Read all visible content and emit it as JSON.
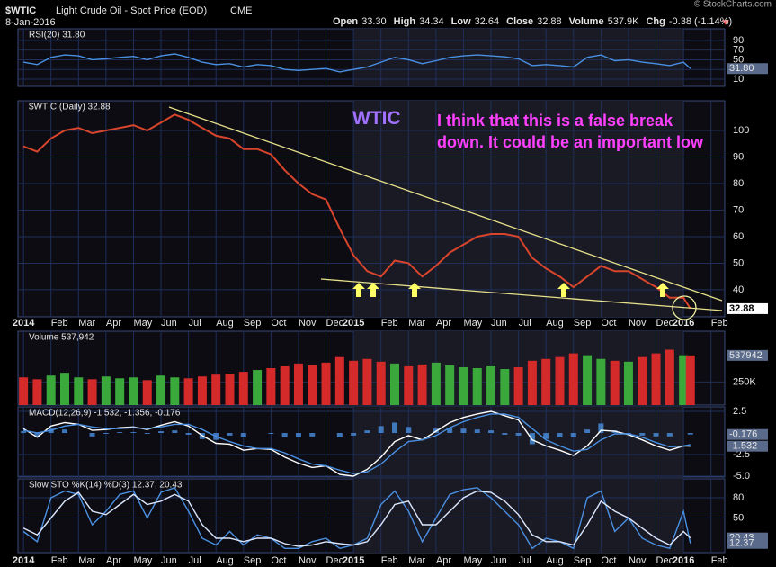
{
  "header": {
    "symbol": "$WTIC",
    "name": "Light Crude Oil - Spot Price (EOD)",
    "exchange": "CME",
    "date": "8-Jan-2016",
    "watermark": "© StockCharts.com",
    "quote": [
      {
        "label": "Open",
        "value": "33.30"
      },
      {
        "label": "High",
        "value": "34.34"
      },
      {
        "label": "Low",
        "value": "32.64"
      },
      {
        "label": "Close",
        "value": "32.88"
      },
      {
        "label": "Volume",
        "value": "537.9K"
      },
      {
        "label": "Chg",
        "value": "-0.38 (-1.14%)"
      }
    ]
  },
  "time_axis": {
    "xlim": [
      -0.2,
      25.5
    ],
    "xticks": [
      {
        "value": 0,
        "label": "2014"
      },
      {
        "value": 1,
        "label": "Feb"
      },
      {
        "value": 2,
        "label": "Mar"
      },
      {
        "value": 3,
        "label": "Apr"
      },
      {
        "value": 4,
        "label": "May"
      },
      {
        "value": 5,
        "label": "Jun"
      },
      {
        "value": 6,
        "label": "Jul"
      },
      {
        "value": 7,
        "label": "Aug"
      },
      {
        "value": 8,
        "label": "Sep"
      },
      {
        "value": 9,
        "label": "Oct"
      },
      {
        "value": 10,
        "label": "Nov"
      },
      {
        "value": 11,
        "label": "Dec"
      },
      {
        "value": 12,
        "label": "2015"
      },
      {
        "value": 13,
        "label": "Feb"
      },
      {
        "value": 14,
        "label": "Mar"
      },
      {
        "value": 15,
        "label": "Apr"
      },
      {
        "value": 16,
        "label": "May"
      },
      {
        "value": 17,
        "label": "Jun"
      },
      {
        "value": 18,
        "label": "Jul"
      },
      {
        "value": 19,
        "label": "Aug"
      },
      {
        "value": 20,
        "label": "Sep"
      },
      {
        "value": 21,
        "label": "Oct"
      },
      {
        "value": 22,
        "label": "Nov"
      },
      {
        "value": 23,
        "label": "Dec"
      },
      {
        "value": 24,
        "label": "2016"
      },
      {
        "value": 25,
        "label": "Feb"
      }
    ],
    "x": [
      0,
      0.5,
      1,
      1.5,
      2,
      2.5,
      3,
      3.5,
      4,
      4.5,
      5,
      5.5,
      6,
      6.5,
      7,
      7.5,
      8,
      8.5,
      9,
      9.5,
      10,
      10.5,
      11,
      11.5,
      12,
      12.5,
      13,
      13.5,
      14,
      14.5,
      15,
      15.5,
      16,
      16.5,
      17,
      17.5,
      18,
      18.5,
      19,
      19.5,
      20,
      20.5,
      21,
      21.5,
      22,
      22.5,
      23,
      23.5,
      24,
      24.25
    ]
  },
  "chart_data": [
    {
      "type": "line",
      "label": "RSI(20) 31.80",
      "ylim": [
        -4.9,
        114
      ],
      "yticks": [
        10,
        30,
        50,
        70,
        90
      ],
      "series": [
        {
          "color": "#4a90e2",
          "values": [
            45,
            40,
            55,
            60,
            58,
            50,
            52,
            55,
            57,
            50,
            58,
            62,
            55,
            45,
            40,
            42,
            35,
            40,
            38,
            30,
            28,
            30,
            32,
            25,
            30,
            35,
            45,
            55,
            50,
            42,
            48,
            55,
            58,
            60,
            58,
            56,
            52,
            38,
            40,
            38,
            35,
            55,
            60,
            48,
            50,
            45,
            42,
            38,
            45,
            31.8
          ]
        }
      ],
      "tags": [
        {
          "value": 31.8,
          "label": "31.80"
        }
      ]
    },
    {
      "type": "line",
      "label": "$WTIC (Daily) 32.88",
      "ylim": [
        29.8,
        111.2
      ],
      "yticks": [
        40,
        50,
        60,
        70,
        80,
        90,
        100
      ],
      "series": [
        {
          "color": "#d8452c",
          "values": [
            94,
            92,
            97,
            100,
            101,
            99,
            100,
            101,
            102,
            100,
            103,
            106,
            104,
            101,
            98,
            97,
            93,
            93,
            91,
            85,
            80,
            76,
            74,
            63,
            53,
            47,
            45,
            51,
            50,
            45,
            49,
            54,
            57,
            60,
            61,
            61,
            60,
            52,
            48,
            45,
            41,
            45,
            49,
            47,
            47,
            44,
            41,
            37,
            37,
            32.88
          ]
        }
      ],
      "tags": [
        {
          "value": 32.88,
          "label": "32.88"
        }
      ],
      "annotations": [
        {
          "text": "WTIC",
          "color": "#a070ff"
        },
        {
          "text": "I think that this is a false break down.  It could be an important low",
          "color": "#ff40ff"
        }
      ]
    },
    {
      "type": "bar",
      "label": "Volume 537,942",
      "ylim": [
        0,
        800000
      ],
      "yticks": [
        {
          "value": 250000,
          "label": "250K"
        }
      ],
      "up_color": "#3aa83a",
      "down_color": "#d42a2a",
      "series": [
        {
          "values": [
            300000,
            280000,
            320000,
            350000,
            300000,
            280000,
            310000,
            290000,
            300000,
            270000,
            320000,
            300000,
            290000,
            310000,
            330000,
            340000,
            360000,
            380000,
            400000,
            420000,
            450000,
            430000,
            460000,
            520000,
            480000,
            500000,
            470000,
            450000,
            420000,
            440000,
            460000,
            430000,
            410000,
            400000,
            420000,
            390000,
            410000,
            480000,
            500000,
            520000,
            560000,
            540000,
            500000,
            480000,
            470000,
            520000,
            560000,
            600000,
            540000,
            537942
          ]
        }
      ],
      "tags": [
        {
          "value": 537942,
          "label": "537942"
        }
      ]
    },
    {
      "type": "line",
      "label": "MACD(12,26,9) -1.532, -1.356, -0.176",
      "ylim": [
        -5.1,
        3.02
      ],
      "yticks": [
        2.5,
        -2.5,
        {
          "value": -5,
          "label": "-5.0"
        }
      ],
      "histogram": {
        "color": "#4a90e2",
        "values": [
          0.2,
          -0.5,
          0.5,
          0.4,
          0,
          -0.4,
          -0.1,
          0.1,
          0.1,
          -0.1,
          0.2,
          0.3,
          -0.2,
          -0.7,
          -0.8,
          -0.3,
          -0.5,
          0,
          -0.1,
          -0.5,
          -0.5,
          -0.4,
          0,
          -0.5,
          -0.3,
          0.3,
          0.8,
          1.2,
          0.7,
          0,
          0.5,
          0.6,
          0.5,
          0.4,
          0.3,
          -0.2,
          -0.3,
          -1.3,
          -0.7,
          -0.5,
          -0.5,
          0.4,
          1.1,
          0.3,
          -0.1,
          -0.3,
          -0.4,
          -0.4,
          0,
          -0.176
        ]
      },
      "series": [
        {
          "color": "#ffffff",
          "values": [
            0.5,
            -0.5,
            0.8,
            1.2,
            1,
            0.3,
            0.4,
            0.6,
            0.7,
            0.4,
            0.9,
            1.3,
            0.8,
            -0.3,
            -1.2,
            -1.3,
            -2,
            -1.8,
            -1.9,
            -2.8,
            -3.5,
            -4,
            -3.8,
            -4.8,
            -5,
            -4.2,
            -2.8,
            -1,
            -0.3,
            -0.8,
            0.2,
            1.2,
            1.8,
            2.2,
            2.5,
            2,
            1.5,
            -0.8,
            -1.5,
            -2,
            -2.6,
            -1.5,
            0.3,
            0.2,
            -0.2,
            -0.8,
            -1.5,
            -2,
            -1.5,
            -1.532
          ]
        },
        {
          "color": "#4a90e2",
          "values": [
            0.3,
            0,
            0.3,
            0.8,
            1,
            0.7,
            0.5,
            0.5,
            0.6,
            0.5,
            0.7,
            1,
            1,
            0.4,
            -0.4,
            -1,
            -1.5,
            -1.8,
            -1.8,
            -2.3,
            -3,
            -3.6,
            -3.8,
            -4.3,
            -4.7,
            -4.5,
            -3.6,
            -2.2,
            -1,
            -0.8,
            -0.3,
            0.6,
            1.3,
            1.8,
            2.2,
            2.2,
            1.8,
            0.5,
            -0.8,
            -1.5,
            -2.1,
            -1.9,
            -0.8,
            -0.1,
            -0.1,
            -0.5,
            -1.1,
            -1.6,
            -1.5,
            -1.356
          ]
        }
      ],
      "tags": [
        {
          "value": -0.176,
          "label": "-0.176"
        },
        {
          "value": -1.532,
          "label": "-1.532"
        }
      ]
    },
    {
      "type": "line",
      "label": "Slow STO %K(14) %D(3) 12.37, 20.43",
      "ylim": [
        -1.3,
        108
      ],
      "yticks": [
        80,
        50
      ],
      "series": [
        {
          "color": "#4a90e2",
          "values": [
            30,
            15,
            80,
            90,
            85,
            40,
            60,
            85,
            90,
            50,
            88,
            95,
            60,
            20,
            10,
            30,
            10,
            25,
            20,
            5,
            5,
            15,
            20,
            5,
            10,
            20,
            70,
            90,
            60,
            15,
            50,
            85,
            92,
            95,
            80,
            60,
            40,
            5,
            20,
            15,
            5,
            80,
            90,
            30,
            50,
            20,
            10,
            5,
            60,
            12.37
          ]
        },
        {
          "color": "#dde8ff",
          "values": [
            35,
            25,
            50,
            75,
            88,
            60,
            55,
            70,
            85,
            70,
            75,
            85,
            75,
            40,
            20,
            20,
            15,
            20,
            20,
            12,
            8,
            10,
            15,
            12,
            10,
            15,
            40,
            70,
            75,
            40,
            40,
            60,
            80,
            90,
            88,
            75,
            55,
            25,
            15,
            15,
            10,
            40,
            75,
            60,
            50,
            35,
            20,
            10,
            30,
            20.43
          ]
        }
      ],
      "tags": [
        {
          "value": 20.43,
          "label": "20.43"
        },
        {
          "value": 12.37,
          "label": "12.37"
        }
      ]
    }
  ]
}
